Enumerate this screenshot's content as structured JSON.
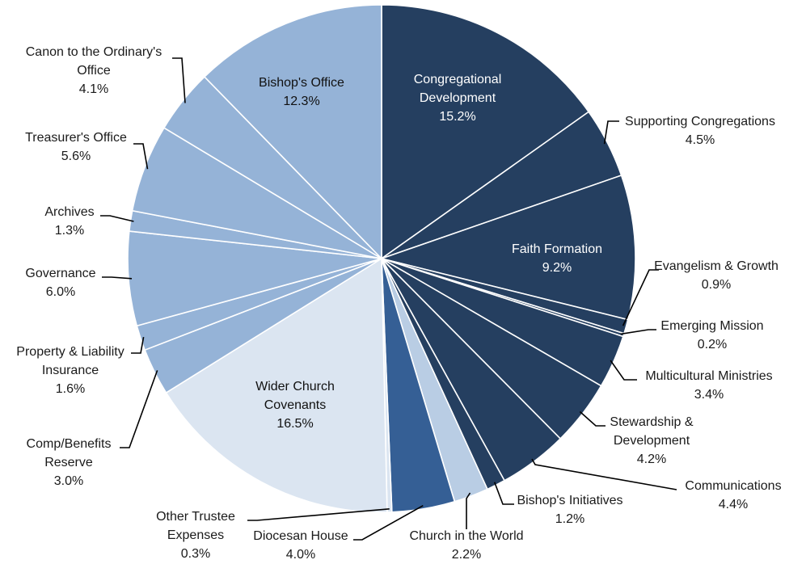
{
  "chart_data": {
    "type": "pie",
    "start_angle_deg": 0,
    "direction": "clockwise",
    "slices": [
      {
        "label": "Congregational Development",
        "value": 15.2,
        "display": "15.2%",
        "color": "#253f60"
      },
      {
        "label": "Supporting Congregations",
        "value": 4.5,
        "display": "4.5%",
        "color": "#253f60"
      },
      {
        "label": "Faith Formation",
        "value": 9.2,
        "display": "9.2%",
        "color": "#253f60"
      },
      {
        "label": "Evangelism & Growth",
        "value": 0.9,
        "display": "0.9%",
        "color": "#253f60"
      },
      {
        "label": "Emerging Mission",
        "value": 0.2,
        "display": "0.2%",
        "color": "#253f60"
      },
      {
        "label": "Multicultural Ministries",
        "value": 3.4,
        "display": "3.4%",
        "color": "#253f60"
      },
      {
        "label": "Stewardship & Development",
        "value": 4.2,
        "display": "4.2%",
        "color": "#253f60"
      },
      {
        "label": "Communications",
        "value": 4.4,
        "display": "4.4%",
        "color": "#253f60"
      },
      {
        "label": "Bishop's Initiatives",
        "value": 1.2,
        "display": "1.2%",
        "color": "#253f60"
      },
      {
        "label": "Church in the World",
        "value": 2.2,
        "display": "2.2%",
        "color": "#b9cde4"
      },
      {
        "label": "Diocesan House",
        "value": 4.0,
        "display": "4.0%",
        "color": "#355f95"
      },
      {
        "label": "Other Trustee Expenses",
        "value": 0.3,
        "display": "0.3%",
        "color": "#dbe5f1"
      },
      {
        "label": "Wider Church Covenants",
        "value": 16.5,
        "display": "16.5%",
        "color": "#dbe5f1"
      },
      {
        "label": "Comp/Benefits Reserve",
        "value": 3.0,
        "display": "3.0%",
        "color": "#95b3d7"
      },
      {
        "label": "Property & Liability Insurance",
        "value": 1.6,
        "display": "1.6%",
        "color": "#95b3d7"
      },
      {
        "label": "Governance",
        "value": 6.0,
        "display": "6.0%",
        "color": "#95b3d7"
      },
      {
        "label": "Archives",
        "value": 1.3,
        "display": "1.3%",
        "color": "#95b3d7"
      },
      {
        "label": "Treasurer's Office",
        "value": 5.6,
        "display": "5.6%",
        "color": "#95b3d7"
      },
      {
        "label": "Canon to the Ordinary's Office",
        "value": 4.1,
        "display": "4.1%",
        "color": "#95b3d7"
      },
      {
        "label": "Bishop's Office",
        "value": 12.3,
        "display": "12.3%",
        "color": "#95b3d7"
      }
    ]
  }
}
